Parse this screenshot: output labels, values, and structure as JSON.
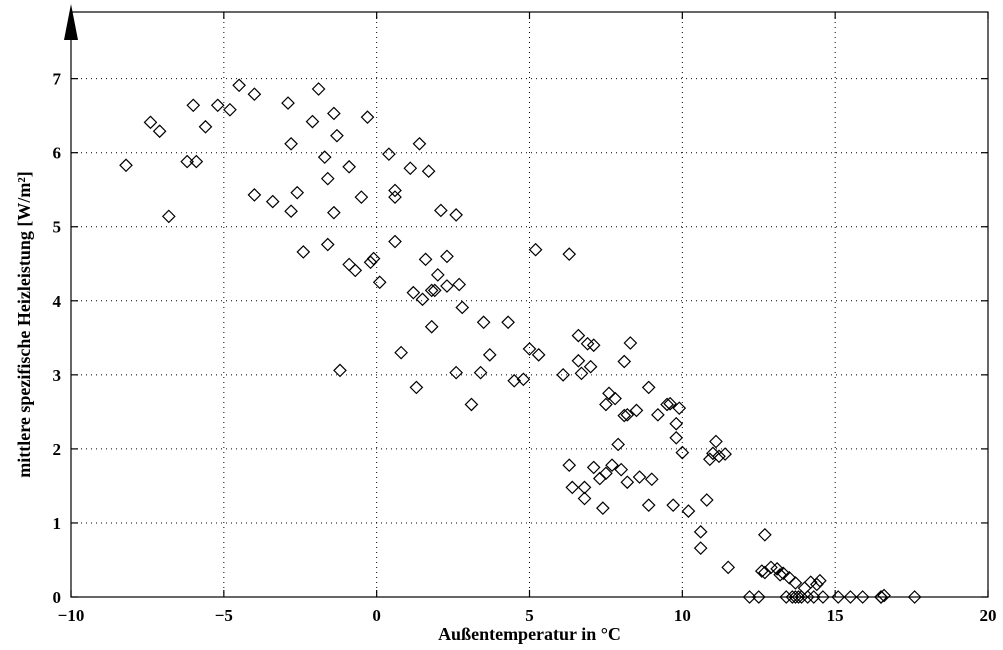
{
  "chart_data": {
    "type": "scatter",
    "xlabel": "Außentemperatur in °C",
    "ylabel": "mittlere spezifische  Heizleistung [W/m²]",
    "xlim": [
      -10,
      20
    ],
    "ylim": [
      0,
      7.9
    ],
    "xticks": [
      -10,
      -5,
      0,
      5,
      10,
      15,
      20
    ],
    "yticks": [
      0,
      1,
      2,
      3,
      4,
      5,
      6,
      7
    ],
    "xtick_labels": [
      "−10",
      "−5",
      "0",
      "5",
      "10",
      "15",
      "20"
    ],
    "ytick_labels": [
      "0",
      "1",
      "2",
      "3",
      "4",
      "5",
      "6",
      "7"
    ],
    "grid": true,
    "marker": "diamond",
    "points": [
      [
        -8.2,
        5.83
      ],
      [
        -7.4,
        6.41
      ],
      [
        -7.1,
        6.29
      ],
      [
        -6.8,
        5.14
      ],
      [
        -6.2,
        5.88
      ],
      [
        -6.0,
        6.64
      ],
      [
        -5.9,
        5.88
      ],
      [
        -5.6,
        6.35
      ],
      [
        -5.2,
        6.64
      ],
      [
        -4.8,
        6.58
      ],
      [
        -4.5,
        6.91
      ],
      [
        -4.0,
        6.79
      ],
      [
        -4.0,
        5.43
      ],
      [
        -3.4,
        5.34
      ],
      [
        -2.9,
        6.67
      ],
      [
        -2.8,
        6.12
      ],
      [
        -2.8,
        5.21
      ],
      [
        -2.6,
        5.46
      ],
      [
        -2.4,
        4.66
      ],
      [
        -2.1,
        6.42
      ],
      [
        -1.9,
        6.86
      ],
      [
        -1.7,
        5.94
      ],
      [
        -1.6,
        5.65
      ],
      [
        -1.6,
        4.76
      ],
      [
        -1.4,
        6.53
      ],
      [
        -1.4,
        5.19
      ],
      [
        -1.3,
        6.23
      ],
      [
        -1.2,
        3.06
      ],
      [
        -0.9,
        5.81
      ],
      [
        -0.9,
        4.49
      ],
      [
        -0.7,
        4.41
      ],
      [
        -0.5,
        5.4
      ],
      [
        -0.3,
        6.48
      ],
      [
        -0.2,
        4.52
      ],
      [
        -0.1,
        4.57
      ],
      [
        0.1,
        4.25
      ],
      [
        0.4,
        5.98
      ],
      [
        0.6,
        5.49
      ],
      [
        0.6,
        5.4
      ],
      [
        0.6,
        4.8
      ],
      [
        0.8,
        3.3
      ],
      [
        1.1,
        5.79
      ],
      [
        1.2,
        4.11
      ],
      [
        1.3,
        2.83
      ],
      [
        1.4,
        6.12
      ],
      [
        1.5,
        4.02
      ],
      [
        1.6,
        4.56
      ],
      [
        1.7,
        5.75
      ],
      [
        1.8,
        4.14
      ],
      [
        1.8,
        3.65
      ],
      [
        1.9,
        4.14
      ],
      [
        2.0,
        4.35
      ],
      [
        2.1,
        5.22
      ],
      [
        2.3,
        4.6
      ],
      [
        2.3,
        4.2
      ],
      [
        2.6,
        5.16
      ],
      [
        2.6,
        3.03
      ],
      [
        2.7,
        4.22
      ],
      [
        2.8,
        3.91
      ],
      [
        3.1,
        2.6
      ],
      [
        3.4,
        3.03
      ],
      [
        3.5,
        3.71
      ],
      [
        3.7,
        3.27
      ],
      [
        4.3,
        3.71
      ],
      [
        4.5,
        2.92
      ],
      [
        4.8,
        2.94
      ],
      [
        5.0,
        3.35
      ],
      [
        5.2,
        4.69
      ],
      [
        5.3,
        3.27
      ],
      [
        6.1,
        3.0
      ],
      [
        6.3,
        4.63
      ],
      [
        6.3,
        1.78
      ],
      [
        6.4,
        1.48
      ],
      [
        6.6,
        3.53
      ],
      [
        6.6,
        3.19
      ],
      [
        6.7,
        3.02
      ],
      [
        6.8,
        1.48
      ],
      [
        6.8,
        1.33
      ],
      [
        6.9,
        3.42
      ],
      [
        7.0,
        3.11
      ],
      [
        7.1,
        3.4
      ],
      [
        7.1,
        1.75
      ],
      [
        7.3,
        1.6
      ],
      [
        7.4,
        1.2
      ],
      [
        7.5,
        2.6
      ],
      [
        7.5,
        1.67
      ],
      [
        7.6,
        2.75
      ],
      [
        7.7,
        1.78
      ],
      [
        7.8,
        2.68
      ],
      [
        7.9,
        2.06
      ],
      [
        8.0,
        1.72
      ],
      [
        8.1,
        3.18
      ],
      [
        8.1,
        2.45
      ],
      [
        8.2,
        2.46
      ],
      [
        8.2,
        1.55
      ],
      [
        8.3,
        3.43
      ],
      [
        8.5,
        2.52
      ],
      [
        8.6,
        1.62
      ],
      [
        8.9,
        2.83
      ],
      [
        8.9,
        1.24
      ],
      [
        9.0,
        1.59
      ],
      [
        9.2,
        2.46
      ],
      [
        9.5,
        2.6
      ],
      [
        9.6,
        2.61
      ],
      [
        9.7,
        1.24
      ],
      [
        9.8,
        2.34
      ],
      [
        9.8,
        2.15
      ],
      [
        9.9,
        2.55
      ],
      [
        10.0,
        1.95
      ],
      [
        10.2,
        1.16
      ],
      [
        10.6,
        0.88
      ],
      [
        10.6,
        0.66
      ],
      [
        10.8,
        1.31
      ],
      [
        10.9,
        1.86
      ],
      [
        11.0,
        1.94
      ],
      [
        11.1,
        2.1
      ],
      [
        11.2,
        1.9
      ],
      [
        11.4,
        1.93
      ],
      [
        11.5,
        0.4
      ],
      [
        12.2,
        0.0
      ],
      [
        12.5,
        0.0
      ],
      [
        12.6,
        0.35
      ],
      [
        12.7,
        0.84
      ],
      [
        12.7,
        0.33
      ],
      [
        12.9,
        0.4
      ],
      [
        13.1,
        0.38
      ],
      [
        13.2,
        0.3
      ],
      [
        13.3,
        0.32
      ],
      [
        13.4,
        0.0
      ],
      [
        13.5,
        0.26
      ],
      [
        13.6,
        0.0
      ],
      [
        13.7,
        0.0
      ],
      [
        13.7,
        0.19
      ],
      [
        13.8,
        0.0
      ],
      [
        13.9,
        0.0
      ],
      [
        14.0,
        0.12
      ],
      [
        14.1,
        0.0
      ],
      [
        14.2,
        0.2
      ],
      [
        14.3,
        0.0
      ],
      [
        14.4,
        0.17
      ],
      [
        14.5,
        0.22
      ],
      [
        14.6,
        0.0
      ],
      [
        15.1,
        0.0
      ],
      [
        15.5,
        0.0
      ],
      [
        15.9,
        0.0
      ],
      [
        16.5,
        0.0
      ],
      [
        16.5,
        0.0
      ],
      [
        16.6,
        0.02
      ],
      [
        17.6,
        0.0
      ]
    ]
  }
}
